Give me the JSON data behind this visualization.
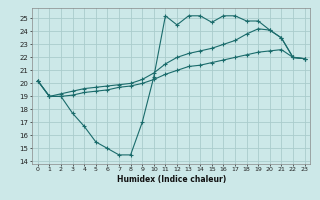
{
  "title": "",
  "xlabel": "Humidex (Indice chaleur)",
  "ylabel": "",
  "background_color": "#cce8e8",
  "grid_color": "#aacccc",
  "line_color": "#1a6b6b",
  "xlim": [
    -0.5,
    23.5
  ],
  "ylim": [
    13.8,
    25.8
  ],
  "yticks": [
    14,
    15,
    16,
    17,
    18,
    19,
    20,
    21,
    22,
    23,
    24,
    25
  ],
  "xticks": [
    0,
    1,
    2,
    3,
    4,
    5,
    6,
    7,
    8,
    9,
    10,
    11,
    12,
    13,
    14,
    15,
    16,
    17,
    18,
    19,
    20,
    21,
    22,
    23
  ],
  "line1_x": [
    0,
    1,
    2,
    3,
    4,
    5,
    6,
    7,
    8,
    9,
    10,
    11,
    12,
    13,
    14,
    15,
    16,
    17,
    18,
    19,
    20,
    21,
    22,
    23
  ],
  "line1_y": [
    20.2,
    19.0,
    19.0,
    17.7,
    16.7,
    15.5,
    15.0,
    14.5,
    14.5,
    17.0,
    20.5,
    25.2,
    24.5,
    25.2,
    25.2,
    24.7,
    25.2,
    25.2,
    24.8,
    24.8,
    24.1,
    23.5,
    22.0,
    21.9
  ],
  "line2_x": [
    0,
    1,
    2,
    3,
    4,
    5,
    6,
    7,
    8,
    9,
    10,
    11,
    12,
    13,
    14,
    15,
    16,
    17,
    18,
    19,
    20,
    21,
    22,
    23
  ],
  "line2_y": [
    20.2,
    19.0,
    19.2,
    19.4,
    19.6,
    19.7,
    19.8,
    19.9,
    20.0,
    20.3,
    20.8,
    21.5,
    22.0,
    22.3,
    22.5,
    22.7,
    23.0,
    23.3,
    23.8,
    24.2,
    24.1,
    23.5,
    22.0,
    21.9
  ],
  "line3_x": [
    0,
    1,
    2,
    3,
    4,
    5,
    6,
    7,
    8,
    9,
    10,
    11,
    12,
    13,
    14,
    15,
    16,
    17,
    18,
    19,
    20,
    21,
    22,
    23
  ],
  "line3_y": [
    20.2,
    19.0,
    19.0,
    19.1,
    19.3,
    19.4,
    19.5,
    19.7,
    19.8,
    20.0,
    20.3,
    20.7,
    21.0,
    21.3,
    21.4,
    21.6,
    21.8,
    22.0,
    22.2,
    22.4,
    22.5,
    22.6,
    22.0,
    21.9
  ]
}
